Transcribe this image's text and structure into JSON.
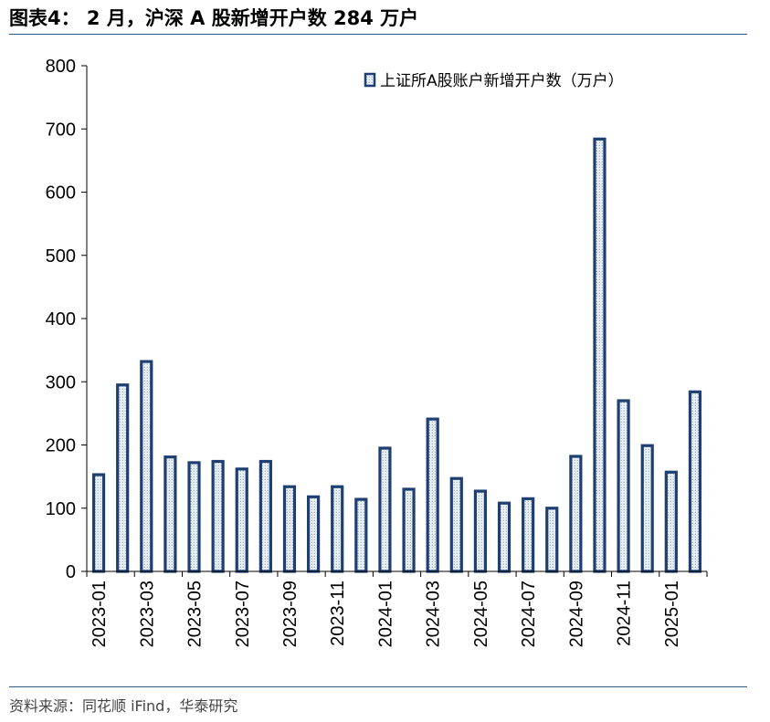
{
  "title": "图表4： 2 月，沪深 A 股新增开户数 284 万户",
  "source": "资料来源：同花顺 iFind，华泰研究",
  "chart_data": {
    "type": "bar",
    "title": "图表4： 2 月，沪深 A 股新增开户数 284 万户",
    "xlabel": "",
    "ylabel": "",
    "ylim": [
      0,
      800
    ],
    "yticks": [
      0,
      100,
      200,
      300,
      400,
      500,
      600,
      700,
      800
    ],
    "legend": "上证所A股账户新增开户数（万户）",
    "legend_position": "top-right",
    "bar_color": "#1f3f73",
    "bar_fill_color": "#dce8f3",
    "categories": [
      "2023-01",
      "2023-02",
      "2023-03",
      "2023-04",
      "2023-05",
      "2023-06",
      "2023-07",
      "2023-08",
      "2023-09",
      "2023-10",
      "2023-11",
      "2023-12",
      "2024-01",
      "2024-02",
      "2024-03",
      "2024-04",
      "2024-05",
      "2024-06",
      "2024-07",
      "2024-08",
      "2024-09",
      "2024-10",
      "2024-11",
      "2024-12",
      "2025-01",
      "2025-02"
    ],
    "tick_labels": [
      "2023-01",
      "",
      "2023-03",
      "",
      "2023-05",
      "",
      "2023-07",
      "",
      "2023-09",
      "",
      "2023-11",
      "",
      "2024-01",
      "",
      "2024-03",
      "",
      "2024-05",
      "",
      "2024-07",
      "",
      "2024-09",
      "",
      "2024-11",
      "",
      "2025-01",
      ""
    ],
    "values": [
      153,
      295,
      332,
      181,
      172,
      174,
      162,
      174,
      134,
      118,
      134,
      114,
      195,
      130,
      241,
      147,
      127,
      108,
      115,
      100,
      182,
      684,
      270,
      199,
      157,
      284
    ]
  }
}
